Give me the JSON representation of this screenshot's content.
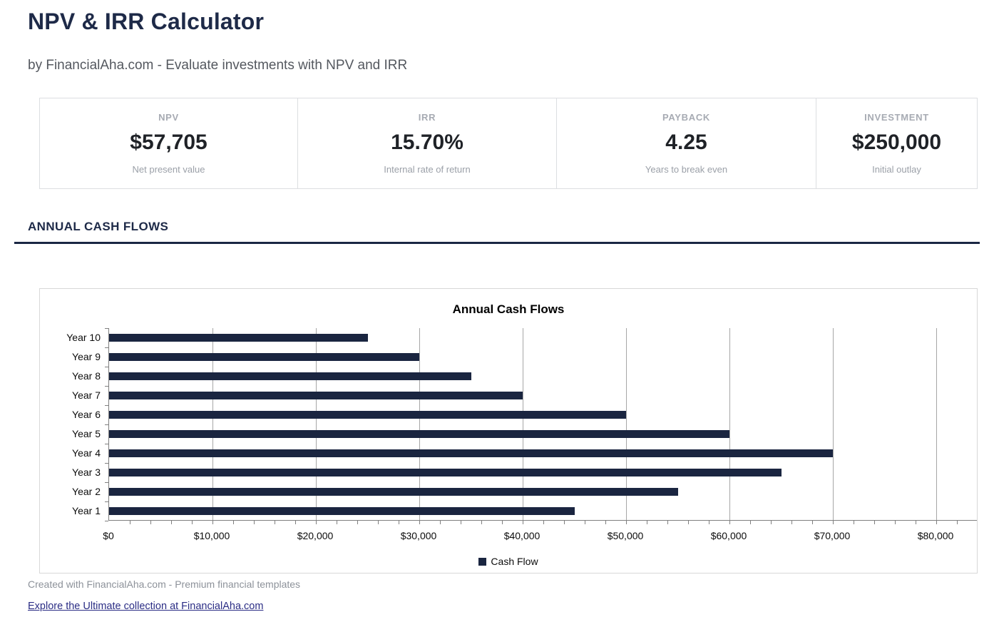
{
  "page": {
    "title": "NPV & IRR Calculator",
    "subtitle": "by FinancialAha.com - Evaluate investments with NPV and IRR"
  },
  "stats": {
    "cards": [
      {
        "label": "NPV",
        "value": "$57,705",
        "description": "Net present value"
      },
      {
        "label": "IRR",
        "value": "15.70%",
        "description": "Internal rate of return"
      },
      {
        "label": "PAYBACK",
        "value": "4.25",
        "description": "Years to break even"
      },
      {
        "label": "INVESTMENT",
        "value": "$250,000",
        "description": "Initial outlay"
      }
    ]
  },
  "section": {
    "heading": "ANNUAL CASH FLOWS"
  },
  "chart_data": {
    "type": "bar",
    "orientation": "horizontal",
    "title": "Annual Cash Flows",
    "categories": [
      "Year 1",
      "Year 2",
      "Year 3",
      "Year 4",
      "Year 5",
      "Year 6",
      "Year 7",
      "Year 8",
      "Year 9",
      "Year 10"
    ],
    "series": [
      {
        "name": "Cash Flow",
        "values": [
          45000,
          55000,
          65000,
          70000,
          60000,
          50000,
          40000,
          35000,
          30000,
          25000
        ]
      }
    ],
    "xlabel": "",
    "ylabel": "",
    "xlim": [
      0,
      84000
    ],
    "x_major_tick": 10000,
    "x_minor_tick": 2000,
    "x_tick_labels": [
      "$0",
      "$10,000",
      "$20,000",
      "$30,000",
      "$40,000",
      "$50,000",
      "$60,000",
      "$70,000",
      "$80,000"
    ],
    "grid": "vertical-major",
    "legend_position": "bottom",
    "bar_color": "#1a2540"
  },
  "footer": {
    "credit": "Created with FinancialAha.com - Premium financial templates",
    "link": "Explore the Ultimate collection at FinancialAha.com"
  },
  "colors": {
    "accent_navy": "#1e2a48",
    "rule_navy": "#1a2744",
    "bar_navy": "#1a2540",
    "card_border": "#dcdee1",
    "gridline": "#a6a6a6",
    "axis": "#7f7f7f",
    "link": "#2b2d85"
  }
}
